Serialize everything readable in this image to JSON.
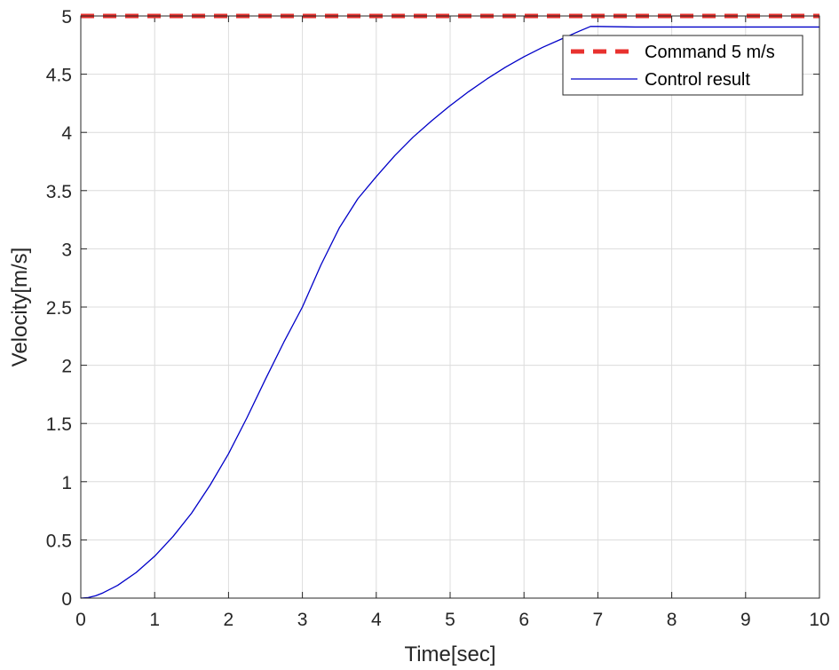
{
  "chart_data": {
    "type": "line",
    "title": "",
    "xlabel": "Time[sec]",
    "ylabel": "Velocity[m/s]",
    "xlim": [
      0,
      10
    ],
    "ylim": [
      0,
      5
    ],
    "xticks": [
      "0",
      "1",
      "2",
      "3",
      "4",
      "5",
      "6",
      "7",
      "8",
      "9",
      "10"
    ],
    "yticks": [
      "0",
      "0.5",
      "1",
      "1.5",
      "2",
      "2.5",
      "3",
      "3.5",
      "4",
      "4.5",
      "5"
    ],
    "grid": true,
    "legend_position": "top-right",
    "series": [
      {
        "name": "Command 5 m/s",
        "style": "dashed",
        "color": "#e8312e",
        "x": [
          0,
          10
        ],
        "y": [
          5,
          5
        ]
      },
      {
        "name": "Control result",
        "style": "solid",
        "color": "#0000c8",
        "x": [
          0,
          0.1,
          0.2,
          0.3,
          0.5,
          0.75,
          1.0,
          1.25,
          1.5,
          1.75,
          2.0,
          2.25,
          2.5,
          2.75,
          3.0,
          3.25,
          3.5,
          3.75,
          4.0,
          4.25,
          4.5,
          4.75,
          5.0,
          5.25,
          5.5,
          5.75,
          6.0,
          6.25,
          6.5,
          6.75,
          6.9,
          7.0,
          7.5,
          8.0,
          9.0,
          10.0
        ],
        "y": [
          0,
          0.005,
          0.02,
          0.045,
          0.11,
          0.22,
          0.36,
          0.53,
          0.73,
          0.97,
          1.24,
          1.55,
          1.88,
          2.2,
          2.5,
          2.86,
          3.18,
          3.43,
          3.62,
          3.8,
          3.96,
          4.1,
          4.23,
          4.35,
          4.46,
          4.56,
          4.65,
          4.73,
          4.8,
          4.87,
          4.91,
          4.91,
          4.905,
          4.905,
          4.905,
          4.905
        ]
      }
    ]
  }
}
